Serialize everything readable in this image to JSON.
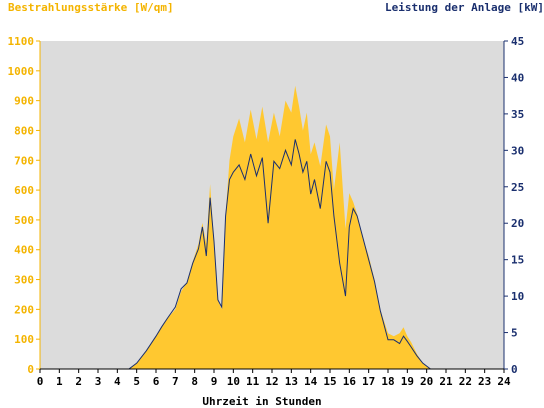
{
  "chart_data": {
    "type": "area",
    "title_left": "Bestrahlungsstärke [W/qm]",
    "title_right": "Leistung der Anlage [kW]",
    "xlabel": "Uhrzeit in Stunden",
    "xlim": [
      0,
      24
    ],
    "ylim_left": [
      0,
      1100
    ],
    "ylim_right": [
      0,
      45
    ],
    "x_ticks": [
      "0",
      "1",
      "2",
      "3",
      "4",
      "5",
      "6",
      "7",
      "8",
      "9",
      "10",
      "11",
      "12",
      "13",
      "14",
      "15",
      "16",
      "17",
      "18",
      "19",
      "20",
      "21",
      "22",
      "23",
      "24"
    ],
    "y_left_ticks": [
      "0",
      "100",
      "200",
      "300",
      "400",
      "500",
      "600",
      "700",
      "800",
      "900",
      "1000",
      "1100"
    ],
    "y_right_ticks": [
      "0",
      "5",
      "10",
      "15",
      "20",
      "25",
      "30",
      "35",
      "40",
      "45"
    ],
    "grid": false,
    "colors": {
      "irradiance_fill": "#ffc830",
      "power_line": "#1a2f6e",
      "plot_background": "#dcdcdc",
      "left_axis": "#f4b400",
      "right_axis": "#1a2f6e"
    },
    "series": [
      {
        "name": "Bestrahlungsstärke [W/qm]",
        "axis": "left",
        "style": "area",
        "x": [
          0,
          4.6,
          5.0,
          5.5,
          6.0,
          6.3,
          6.6,
          7.0,
          7.3,
          7.6,
          7.9,
          8.2,
          8.4,
          8.6,
          8.8,
          9.0,
          9.2,
          9.4,
          9.6,
          9.8,
          10.0,
          10.3,
          10.6,
          10.9,
          11.2,
          11.5,
          11.8,
          12.1,
          12.4,
          12.7,
          13.0,
          13.2,
          13.4,
          13.6,
          13.8,
          14.0,
          14.2,
          14.5,
          14.8,
          15.0,
          15.2,
          15.5,
          15.8,
          16.0,
          16.2,
          16.4,
          16.7,
          17.0,
          17.3,
          17.6,
          18.0,
          18.3,
          18.6,
          18.8,
          19.0,
          19.2,
          19.5,
          19.8,
          20.2,
          20.6,
          21.0,
          24
        ],
        "y": [
          0,
          0,
          20,
          60,
          110,
          140,
          170,
          200,
          260,
          290,
          360,
          420,
          490,
          420,
          620,
          430,
          230,
          200,
          520,
          700,
          780,
          840,
          760,
          870,
          770,
          880,
          760,
          860,
          780,
          900,
          860,
          950,
          880,
          800,
          860,
          720,
          760,
          680,
          820,
          780,
          600,
          760,
          470,
          590,
          560,
          520,
          440,
          380,
          300,
          200,
          120,
          110,
          120,
          140,
          110,
          90,
          50,
          20,
          0,
          0,
          0,
          0
        ]
      },
      {
        "name": "Leistung der Anlage [kW]",
        "axis": "right",
        "style": "line",
        "x": [
          0,
          4.6,
          5.0,
          5.5,
          6.0,
          6.3,
          6.6,
          7.0,
          7.3,
          7.6,
          7.9,
          8.2,
          8.4,
          8.6,
          8.8,
          9.0,
          9.2,
          9.4,
          9.6,
          9.8,
          10.0,
          10.3,
          10.6,
          10.9,
          11.2,
          11.5,
          11.8,
          12.1,
          12.4,
          12.7,
          13.0,
          13.2,
          13.4,
          13.6,
          13.8,
          14.0,
          14.2,
          14.5,
          14.8,
          15.0,
          15.2,
          15.5,
          15.8,
          16.0,
          16.2,
          16.4,
          16.7,
          17.0,
          17.3,
          17.6,
          18.0,
          18.3,
          18.6,
          18.8,
          19.0,
          19.2,
          19.5,
          19.8,
          20.2,
          20.6,
          21.0,
          24
        ],
        "y": [
          0,
          0,
          0.8,
          2.5,
          4.5,
          5.8,
          7,
          8.5,
          11,
          11.8,
          14.5,
          16.5,
          19.5,
          15.5,
          23.5,
          17.5,
          9.5,
          8.5,
          21,
          26,
          27,
          28,
          26,
          29.5,
          26.5,
          29,
          20,
          28.5,
          27.5,
          30,
          28,
          31.5,
          29.5,
          27,
          28.5,
          24,
          26,
          22,
          28.5,
          27,
          21,
          14.5,
          10,
          19.5,
          22,
          21,
          18,
          15,
          12,
          8,
          4,
          4,
          3.5,
          4.5,
          3.8,
          3,
          1.8,
          0.8,
          0,
          0,
          0,
          0
        ]
      }
    ]
  }
}
